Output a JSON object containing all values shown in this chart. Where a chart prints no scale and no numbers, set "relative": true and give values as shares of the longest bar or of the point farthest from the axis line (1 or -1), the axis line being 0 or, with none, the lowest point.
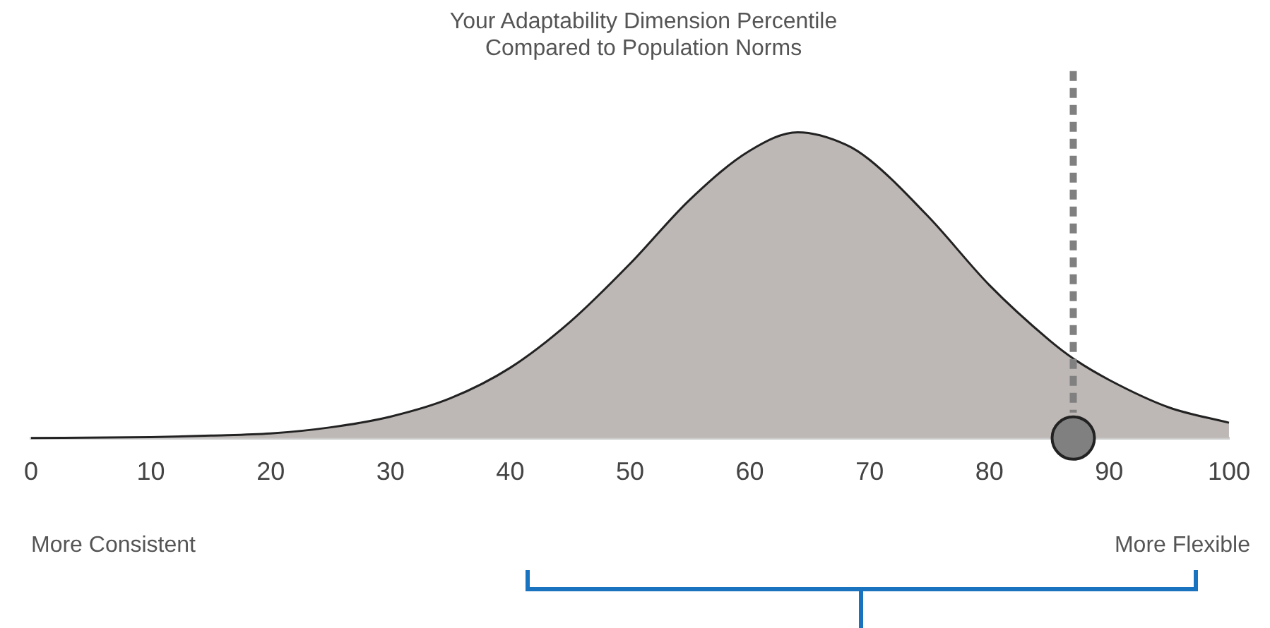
{
  "chart_data": {
    "type": "area",
    "relative": true,
    "title": "Your Adaptability Dimension Percentile\nCompared to Population Norms",
    "xlim": [
      0,
      100
    ],
    "xticks": [
      0,
      10,
      20,
      30,
      40,
      50,
      60,
      70,
      80,
      90,
      100
    ],
    "series": [
      {
        "type": "area",
        "color": "#bdb7b5",
        "x": [
          0,
          10,
          15,
          20,
          25,
          30,
          35,
          40,
          45,
          50,
          55,
          60,
          64,
          68,
          70,
          75,
          80,
          85,
          87,
          90,
          95,
          100
        ],
        "values": [
          0,
          0.003,
          0.008,
          0.015,
          0.035,
          0.07,
          0.13,
          0.23,
          0.38,
          0.57,
          0.78,
          0.94,
          1,
          0.96,
          0.91,
          0.72,
          0.5,
          0.32,
          0.26,
          0.19,
          0.1,
          0.05
        ]
      },
      {
        "type": "scatter",
        "color": "#808080",
        "x": [
          87
        ],
        "values": [
          0
        ],
        "marker": "circle"
      }
    ],
    "ref_lines": [
      {
        "axis": "x",
        "value": 87,
        "color": "#808080",
        "line_style": "dashed"
      }
    ],
    "grid": false,
    "legend": false,
    "annotations": [
      "More Consistent",
      "More Flexible"
    ]
  }
}
